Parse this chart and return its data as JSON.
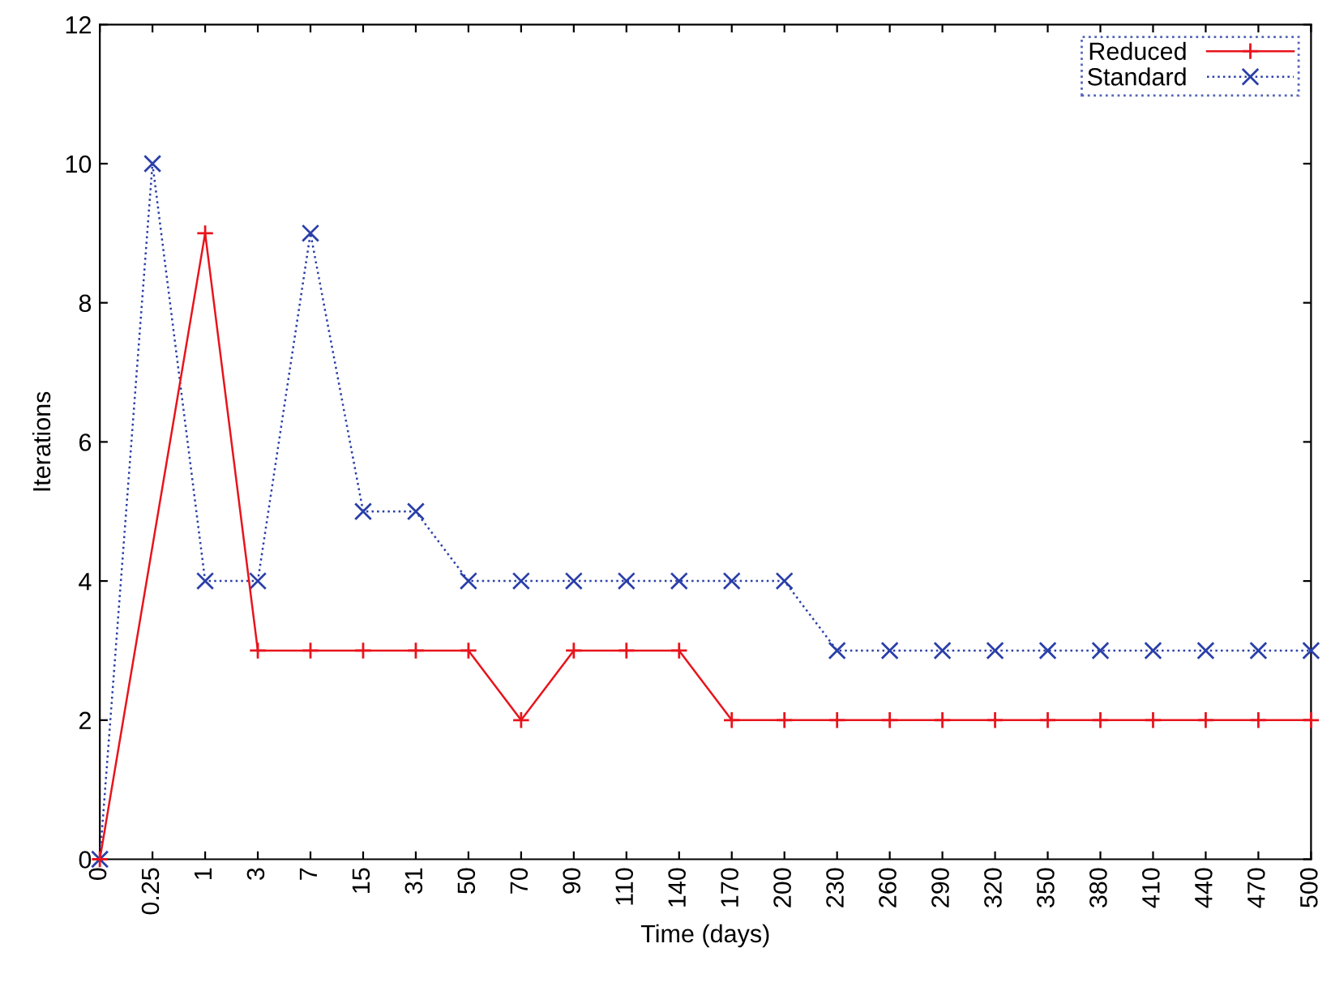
{
  "chart_data": {
    "type": "line",
    "xlabel": "Time (days)",
    "ylabel": "Iterations",
    "categories": [
      "0",
      "0.25",
      "1",
      "3",
      "7",
      "15",
      "31",
      "50",
      "70",
      "90",
      "110",
      "140",
      "170",
      "200",
      "230",
      "260",
      "290",
      "320",
      "350",
      "380",
      "410",
      "440",
      "470",
      "500"
    ],
    "series": [
      {
        "name": "Reduced",
        "color": "#e8141c",
        "marker": "cross",
        "line_style": "solid",
        "values": [
          0,
          null,
          9,
          3,
          3,
          3,
          3,
          3,
          2,
          3,
          3,
          3,
          2,
          2,
          2,
          2,
          2,
          2,
          2,
          2,
          2,
          2,
          2,
          2
        ]
      },
      {
        "name": "Standard",
        "color": "#2a3fa8",
        "marker": "x",
        "line_style": "dotted",
        "values": [
          0,
          10,
          4,
          4,
          9,
          5,
          5,
          4,
          4,
          4,
          4,
          4,
          4,
          4,
          3,
          3,
          3,
          3,
          3,
          3,
          3,
          3,
          3,
          3
        ]
      }
    ],
    "ylim": [
      0,
      12
    ],
    "yticks": [
      0,
      2,
      4,
      6,
      8,
      10,
      12
    ],
    "grid": false,
    "legend": "top right"
  }
}
